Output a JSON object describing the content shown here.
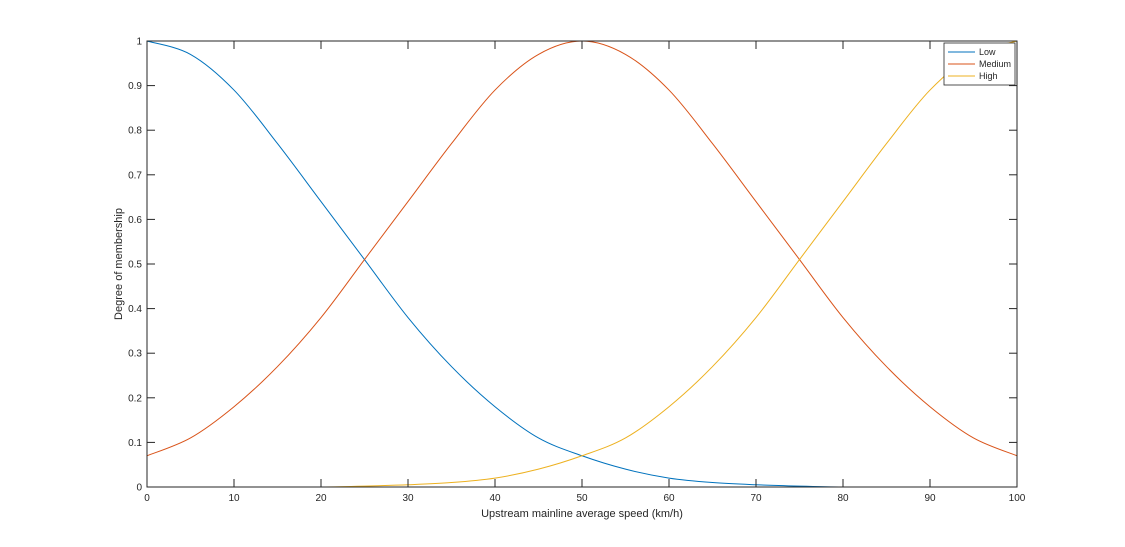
{
  "chart_data": {
    "type": "line",
    "title": "",
    "xlabel": "Upstream mainline average speed (km/h)",
    "ylabel": "Degree of membership",
    "xlim": [
      0,
      100
    ],
    "ylim": [
      0,
      1
    ],
    "xticks": [
      0,
      10,
      20,
      30,
      40,
      50,
      60,
      70,
      80,
      90,
      100
    ],
    "yticks": [
      0,
      0.1,
      0.2,
      0.3,
      0.4,
      0.5,
      0.6,
      0.7,
      0.8,
      0.9,
      1
    ],
    "grid": false,
    "legend_position": "top-right",
    "x": [
      0,
      5,
      10,
      15,
      20,
      25,
      30,
      35,
      40,
      45,
      50,
      55,
      60,
      65,
      70,
      75,
      80,
      85,
      90,
      95,
      100
    ],
    "series": [
      {
        "name": "Low",
        "color": "#0072BD",
        "values": [
          1.0,
          0.97,
          0.89,
          0.77,
          0.64,
          0.51,
          0.38,
          0.27,
          0.18,
          0.11,
          0.07,
          0.04,
          0.02,
          0.01,
          0.005,
          0.002,
          0.0,
          0.0,
          0.0,
          0.0,
          0.0
        ]
      },
      {
        "name": "Medium",
        "color": "#D95319",
        "values": [
          0.07,
          0.11,
          0.18,
          0.27,
          0.38,
          0.51,
          0.64,
          0.77,
          0.89,
          0.97,
          1.0,
          0.97,
          0.89,
          0.77,
          0.64,
          0.51,
          0.38,
          0.27,
          0.18,
          0.11,
          0.07
        ]
      },
      {
        "name": "High",
        "color": "#EDB120",
        "values": [
          0.0,
          0.0,
          0.0,
          0.0,
          0.0,
          0.002,
          0.005,
          0.01,
          0.02,
          0.04,
          0.07,
          0.11,
          0.18,
          0.27,
          0.38,
          0.51,
          0.64,
          0.77,
          0.89,
          0.97,
          1.0
        ]
      }
    ]
  }
}
